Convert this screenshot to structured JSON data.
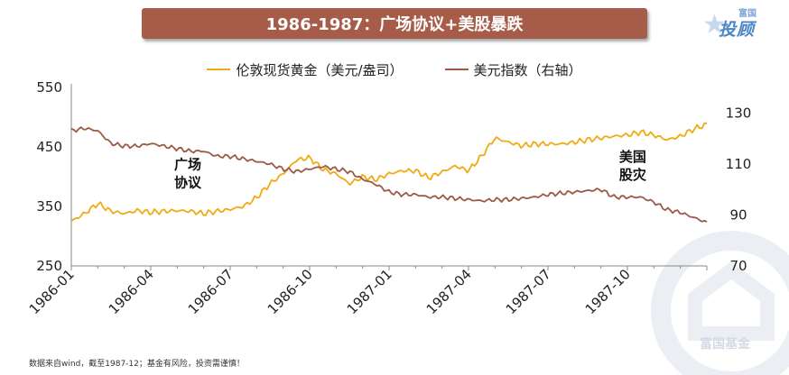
{
  "header": {
    "title": "1986-1987：广场协议+美股暴跌"
  },
  "logo": {
    "small_text": "富国",
    "big_text": "投顾"
  },
  "watermark": {
    "text": "富国基金"
  },
  "footnote": "数据来自wind，截至1987-12；基金有风险，投资需谨慎！",
  "colors": {
    "gold": "#f0aa12",
    "usd_index": "#9a5a47",
    "title_bg": "#a65c49",
    "axis": "#888888"
  },
  "chart_data": {
    "type": "line",
    "title": "1986-1987：广场协议+美股暴跌",
    "x_tick_labels": [
      "1986-01",
      "1986-04",
      "1986-07",
      "1986-10",
      "1987-01",
      "1987-04",
      "1987-07",
      "1987-10"
    ],
    "x_range": [
      "1986-01-01",
      "1987-12-31"
    ],
    "y_left": {
      "range": [
        250,
        550
      ],
      "ticks": [
        250,
        350,
        450,
        550
      ],
      "label": "伦敦现货黄金（美元/盎司）"
    },
    "y_right": {
      "range": [
        70,
        140
      ],
      "ticks": [
        70,
        90,
        110,
        130
      ],
      "label": "美元指数（右轴）"
    },
    "legend_position": "top-center",
    "grid": false,
    "series": [
      {
        "name": "伦敦现货黄金（美元/盎司）",
        "axis": "left",
        "t": [
          0,
          0.5,
          1,
          1.5,
          2,
          2.5,
          3,
          3.5,
          4,
          4.5,
          5,
          5.5,
          6,
          6.5,
          7,
          7.5,
          8,
          8.5,
          9,
          9.5,
          10,
          10.5,
          11,
          11.5,
          12,
          12.5,
          13,
          13.5,
          14,
          14.5,
          15,
          15.5,
          16,
          16.5,
          17,
          17.5,
          18,
          18.5,
          19,
          19.5,
          20,
          20.5,
          21,
          21.5,
          22,
          22.5,
          23,
          23.5,
          24
        ],
        "values": [
          325,
          338,
          355,
          342,
          338,
          343,
          340,
          342,
          343,
          342,
          338,
          342,
          345,
          350,
          365,
          388,
          405,
          428,
          432,
          412,
          405,
          388,
          400,
          395,
          405,
          410,
          410,
          398,
          408,
          418,
          410,
          435,
          465,
          458,
          452,
          455,
          455,
          455,
          458,
          462,
          465,
          468,
          470,
          475,
          470,
          462,
          468,
          480,
          488
        ]
      },
      {
        "name": "美元指数（右轴）",
        "axis": "right",
        "t": [
          0,
          0.5,
          1,
          1.5,
          2,
          2.5,
          3,
          3.5,
          4,
          4.5,
          5,
          5.5,
          6,
          6.5,
          7,
          7.5,
          8,
          8.5,
          9,
          9.5,
          10,
          10.5,
          11,
          11.5,
          12,
          12.5,
          13,
          13.5,
          14,
          14.5,
          15,
          15.5,
          16,
          16.5,
          17,
          17.5,
          18,
          18.5,
          19,
          19.5,
          20,
          20.5,
          21,
          21.5,
          22,
          22.5,
          23,
          23.5,
          24
        ],
        "values": [
          123,
          124,
          123,
          118,
          117,
          117,
          118,
          117,
          116,
          115,
          115,
          113,
          113,
          112,
          111,
          110,
          108,
          107,
          108,
          109,
          108,
          107,
          104,
          102,
          99,
          98,
          98,
          97,
          97,
          96.5,
          96,
          95.5,
          96,
          96,
          96.5,
          97,
          98,
          98.5,
          99,
          99.5,
          100,
          97,
          97,
          97,
          95,
          92,
          91,
          89,
          87
        ]
      }
    ],
    "annotations": [
      {
        "lines": [
          "广场",
          "协议"
        ],
        "t": 4.4,
        "value_right": 108,
        "axis": "right"
      },
      {
        "lines": [
          "美国",
          "股灾"
        ],
        "t": 21.2,
        "value_right": 111,
        "axis": "right"
      }
    ]
  }
}
